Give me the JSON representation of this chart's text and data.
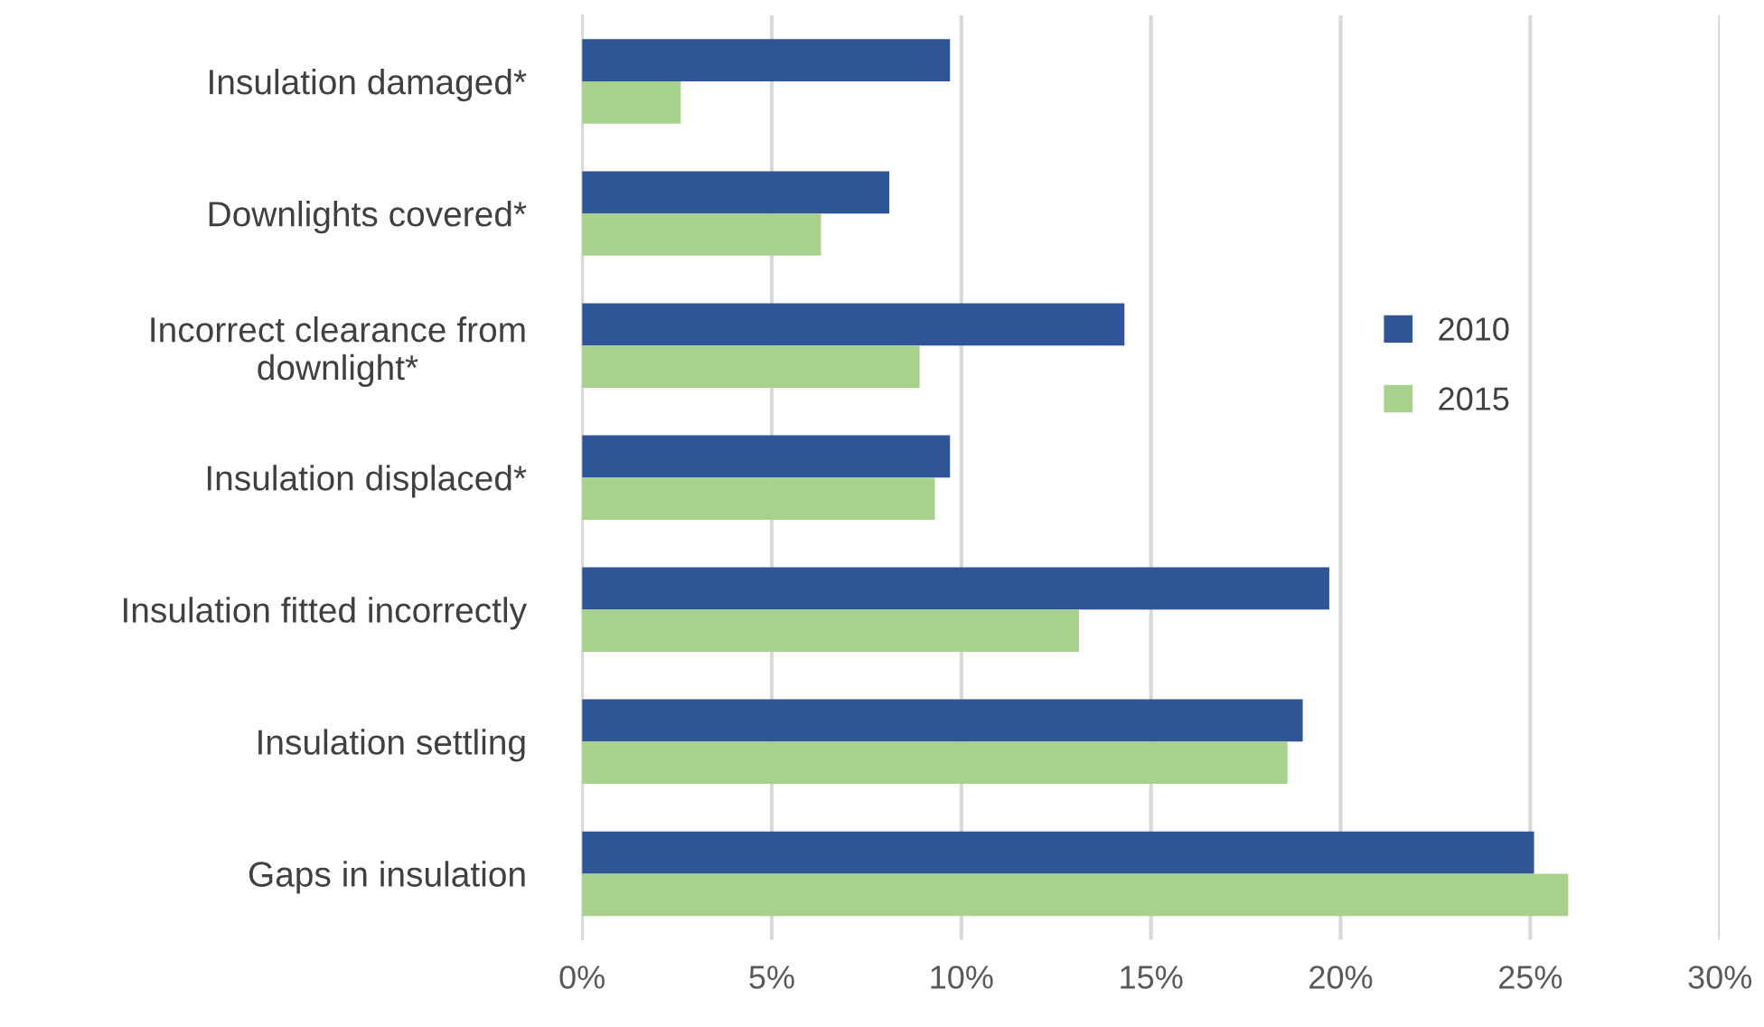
{
  "chart_data": {
    "type": "bar",
    "orientation": "horizontal",
    "categories": [
      "Insulation damaged*",
      "Downlights covered*",
      "Incorrect clearance from downlight*",
      "Insulation displaced*",
      "Insulation fitted incorrectly",
      "Insulation settling",
      "Gaps in insulation"
    ],
    "series": [
      {
        "name": "2010",
        "color": "#2f5597",
        "values": [
          9.7,
          8.1,
          14.3,
          9.7,
          19.7,
          19.0,
          25.1
        ]
      },
      {
        "name": "2015",
        "color": "#a9d18e",
        "values": [
          2.6,
          6.3,
          8.9,
          9.3,
          13.1,
          18.6,
          26.0
        ]
      }
    ],
    "xlim": [
      0,
      30
    ],
    "xticks": [
      {
        "value": 0,
        "label": "0%"
      },
      {
        "value": 5,
        "label": "5%"
      },
      {
        "value": 10,
        "label": "10%"
      },
      {
        "value": 15,
        "label": "15%"
      },
      {
        "value": 20,
        "label": "20%"
      },
      {
        "value": 25,
        "label": "25%"
      },
      {
        "value": 30,
        "label": "30%"
      }
    ],
    "grid": "x",
    "legend": "right"
  }
}
